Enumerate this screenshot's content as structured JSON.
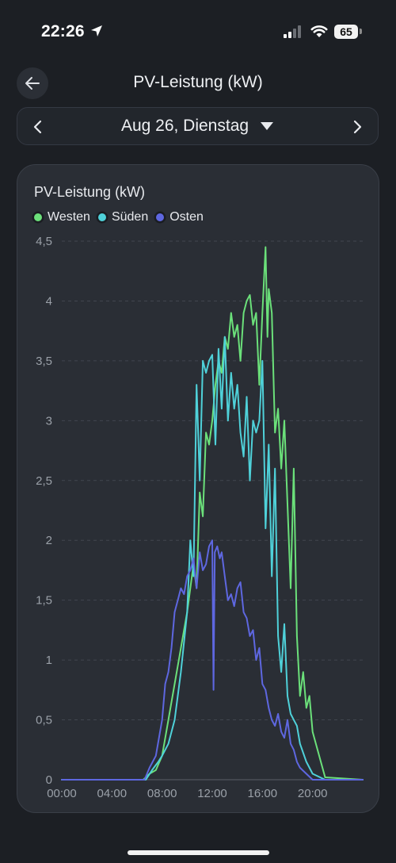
{
  "status_bar": {
    "time": "22:26",
    "battery": "65"
  },
  "header": {
    "title": "PV-Leistung (kW)"
  },
  "date_nav": {
    "date": "Aug 26, Dienstag"
  },
  "chart_data": {
    "type": "line",
    "title": "PV-Leistung (kW)",
    "ylim": [
      0,
      4.5
    ],
    "y_ticks": [
      "0",
      "0,5",
      "1",
      "1,5",
      "2",
      "2,5",
      "3",
      "3,5",
      "4",
      "4,5"
    ],
    "x_ticks": [
      "00:00",
      "04:00",
      "08:00",
      "12:00",
      "16:00",
      "20:00"
    ],
    "x_range_hours": [
      0,
      24
    ],
    "grid": true,
    "legend": "top-left",
    "series": [
      {
        "name": "Westen",
        "color": "#6be07a",
        "x": [
          0,
          6.5,
          7,
          7.5,
          8,
          8.5,
          9,
          9.5,
          10,
          10.5,
          10.75,
          11,
          11.25,
          11.5,
          11.75,
          12,
          12.25,
          12.5,
          12.75,
          13,
          13.25,
          13.5,
          13.75,
          14,
          14.25,
          14.5,
          14.75,
          15,
          15.25,
          15.5,
          15.75,
          16,
          16.25,
          16.4,
          16.5,
          16.75,
          17,
          17.25,
          17.5,
          17.75,
          18,
          18.25,
          18.5,
          18.75,
          19,
          19.25,
          19.5,
          19.75,
          20,
          21,
          24
        ],
        "y": [
          0,
          0,
          0.05,
          0.08,
          0.2,
          0.5,
          0.8,
          1.1,
          1.4,
          1.8,
          1.6,
          2.4,
          2.2,
          2.9,
          2.8,
          3.0,
          3.3,
          3.5,
          3.4,
          3.7,
          3.6,
          3.9,
          3.7,
          3.8,
          3.5,
          3.9,
          4.0,
          4.05,
          3.8,
          3.9,
          3.3,
          3.9,
          4.45,
          3.7,
          4.1,
          3.9,
          2.9,
          3.1,
          2.6,
          3.0,
          2.3,
          1.6,
          2.6,
          1.2,
          0.7,
          0.9,
          0.6,
          0.7,
          0.4,
          0.02,
          0
        ]
      },
      {
        "name": "Süden",
        "color": "#4fd1d9",
        "x": [
          0,
          6.7,
          7.2,
          7.7,
          8,
          8.5,
          9,
          9.5,
          10,
          10.25,
          10.5,
          10.75,
          11,
          11.25,
          11.5,
          11.75,
          12,
          12.25,
          12.5,
          12.75,
          13,
          13.25,
          13.5,
          13.75,
          14,
          14.25,
          14.5,
          14.75,
          15,
          15.25,
          15.5,
          15.75,
          16,
          16.25,
          16.5,
          16.75,
          17,
          17.25,
          17.5,
          17.75,
          18,
          18.25,
          18.5,
          18.75,
          19,
          19.5,
          20,
          21,
          24
        ],
        "y": [
          0,
          0,
          0.08,
          0.15,
          0.2,
          0.3,
          0.5,
          0.9,
          1.4,
          2.0,
          1.7,
          3.3,
          2.5,
          3.5,
          3.4,
          3.5,
          3.55,
          2.8,
          3.6,
          3.1,
          3.7,
          3.0,
          3.4,
          3.1,
          3.3,
          2.9,
          2.7,
          3.2,
          2.5,
          3.0,
          2.9,
          3.0,
          3.5,
          2.1,
          2.8,
          1.7,
          2.6,
          1.2,
          0.9,
          1.3,
          0.7,
          0.55,
          0.5,
          0.45,
          0.3,
          0.15,
          0.05,
          0,
          0
        ]
      },
      {
        "name": "Osten",
        "color": "#5e67e0",
        "x": [
          0,
          6.6,
          7,
          7.5,
          8,
          8.25,
          8.5,
          8.75,
          9,
          9.25,
          9.5,
          9.75,
          10,
          10.25,
          10.5,
          10.75,
          11,
          11.25,
          11.5,
          11.75,
          12,
          12.1,
          12.2,
          12.4,
          12.6,
          12.75,
          13,
          13.25,
          13.5,
          13.75,
          14,
          14.25,
          14.5,
          14.75,
          15,
          15.25,
          15.5,
          15.75,
          16,
          16.25,
          16.5,
          16.75,
          17,
          17.25,
          17.5,
          17.75,
          18,
          18.25,
          18.5,
          18.75,
          19,
          19.5,
          20,
          24
        ],
        "y": [
          0,
          0,
          0.1,
          0.2,
          0.5,
          0.8,
          0.9,
          1.1,
          1.4,
          1.5,
          1.6,
          1.55,
          1.7,
          1.75,
          1.85,
          1.6,
          1.9,
          1.75,
          1.8,
          1.95,
          2.0,
          0.75,
          1.9,
          1.95,
          1.85,
          1.9,
          1.7,
          1.5,
          1.55,
          1.45,
          1.6,
          1.65,
          1.4,
          1.35,
          1.2,
          1.25,
          1.0,
          1.1,
          0.8,
          0.75,
          0.6,
          0.5,
          0.45,
          0.55,
          0.4,
          0.35,
          0.5,
          0.3,
          0.25,
          0.15,
          0.1,
          0.05,
          0,
          0
        ]
      }
    ]
  }
}
